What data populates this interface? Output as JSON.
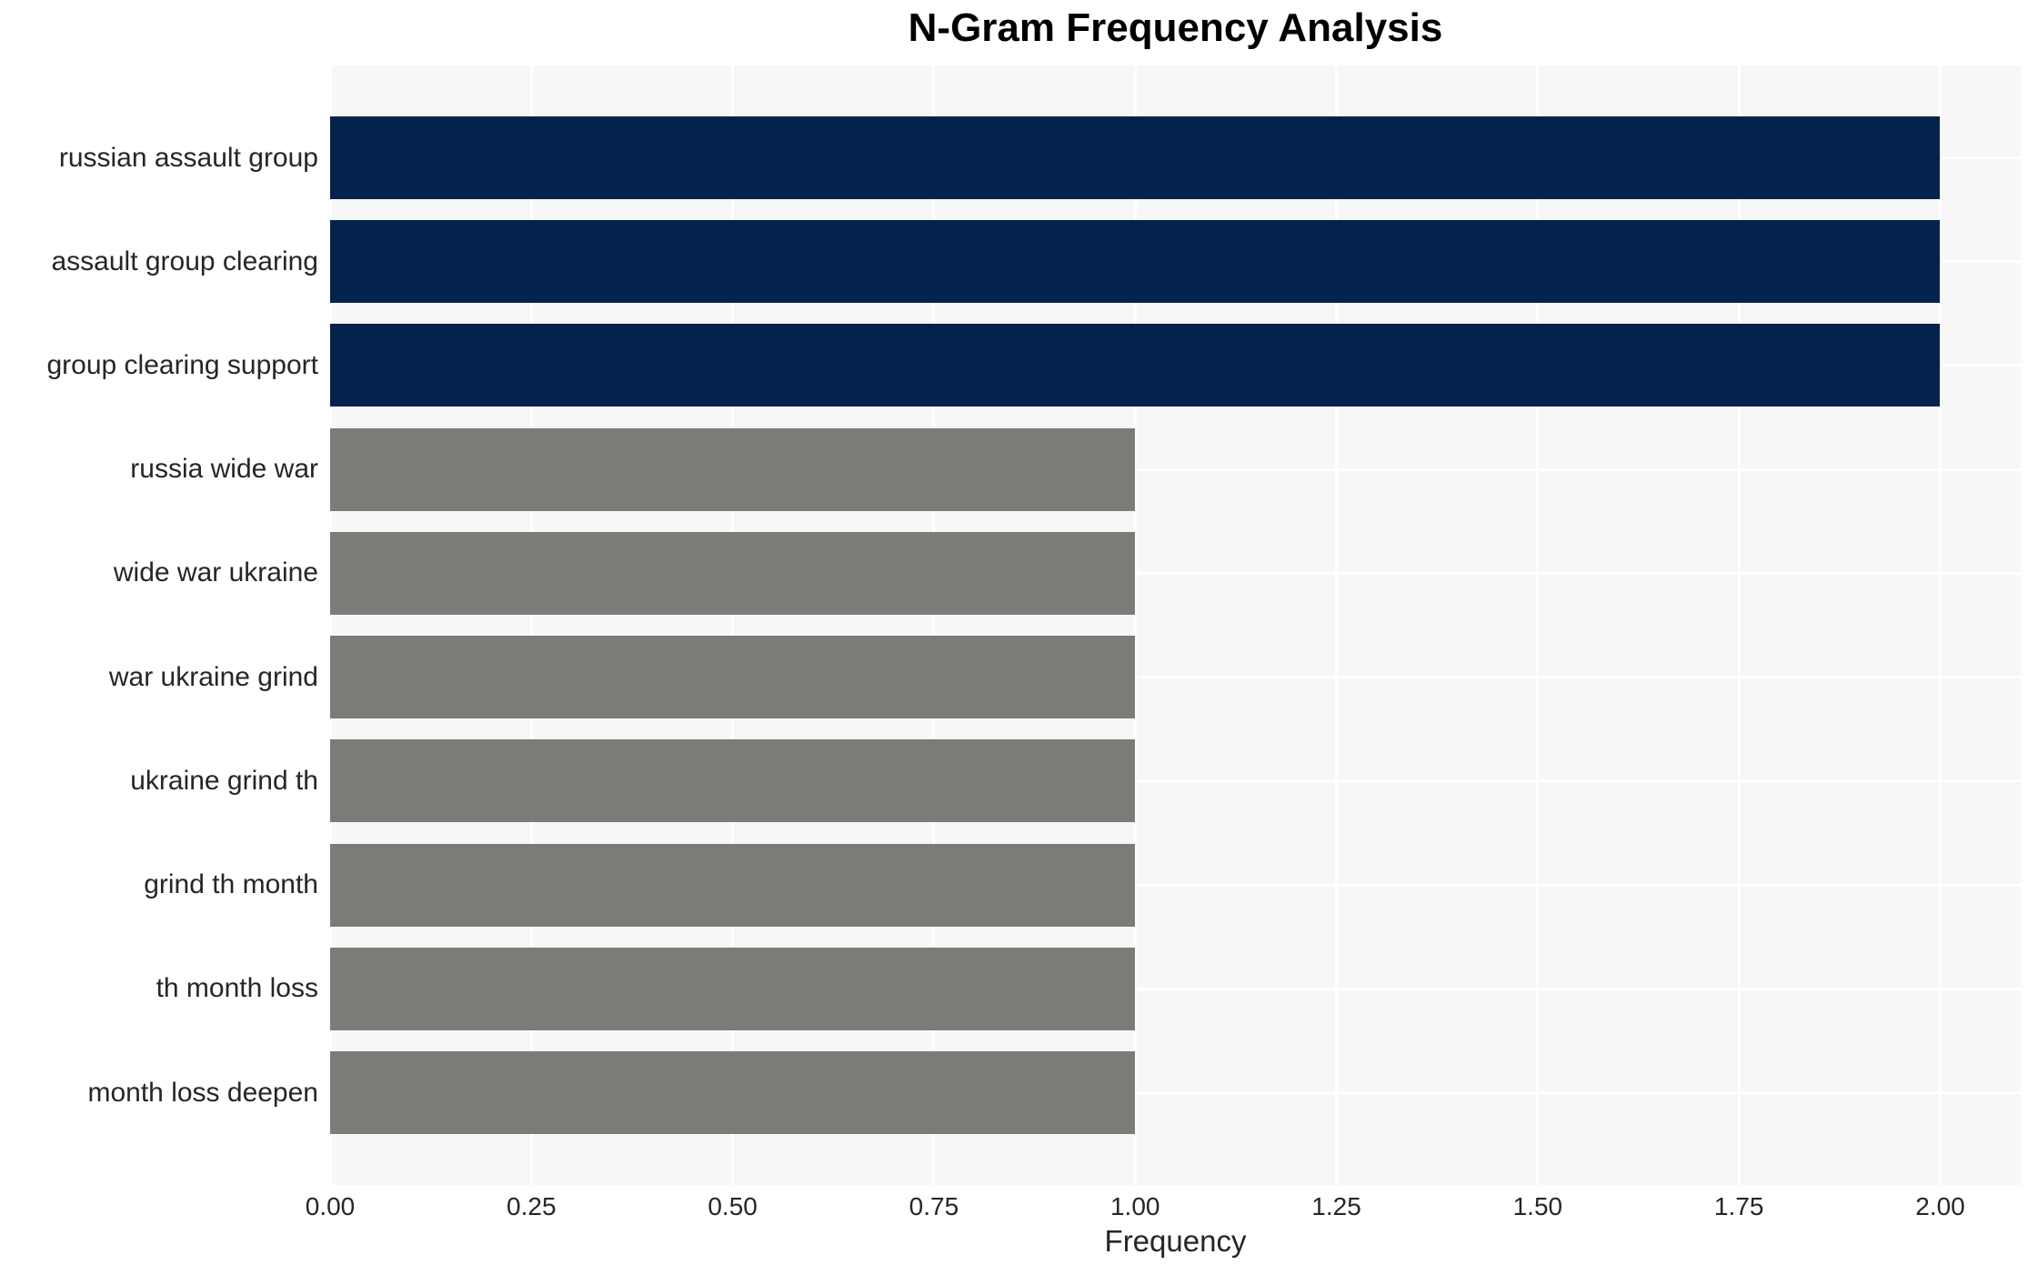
{
  "chart_data": {
    "type": "bar",
    "orientation": "horizontal",
    "title": "N-Gram Frequency Analysis",
    "xlabel": "Frequency",
    "ylabel": "",
    "categories": [
      "russian assault group",
      "assault group clearing",
      "group clearing support",
      "russia wide war",
      "wide war ukraine",
      "war ukraine grind",
      "ukraine grind th",
      "grind th month",
      "th month loss",
      "month loss deepen"
    ],
    "values": [
      2,
      2,
      2,
      1,
      1,
      1,
      1,
      1,
      1,
      1
    ],
    "bar_colors": [
      "#03224c",
      "#03224c",
      "#03224c",
      "#7b7b78",
      "#7b7b78",
      "#7b7b78",
      "#7b7b78",
      "#7b7b78",
      "#7b7b78",
      "#7b7b78"
    ],
    "xlim": [
      0,
      2.1
    ],
    "xticks": [
      {
        "value": 0.0,
        "label": "0.00"
      },
      {
        "value": 0.25,
        "label": "0.25"
      },
      {
        "value": 0.5,
        "label": "0.50"
      },
      {
        "value": 0.75,
        "label": "0.75"
      },
      {
        "value": 1.0,
        "label": "1.00"
      },
      {
        "value": 1.25,
        "label": "1.25"
      },
      {
        "value": 1.5,
        "label": "1.50"
      },
      {
        "value": 1.75,
        "label": "1.75"
      },
      {
        "value": 2.0,
        "label": "2.00"
      }
    ],
    "grid": true,
    "legend": "none",
    "plot_background": "#f7f7f7",
    "grid_color": "#ffffff",
    "text_color": "#262626",
    "title_color": "#000000"
  }
}
